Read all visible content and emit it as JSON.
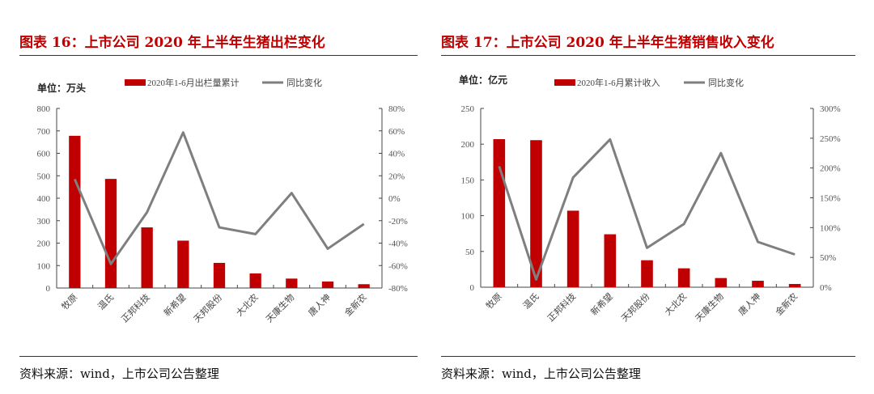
{
  "colors": {
    "bar": "#c00000",
    "line": "#7f7f7f",
    "title": "#c00000"
  },
  "panels": [
    {
      "title": "图表 16：上市公司 2020 年上半年生猪出栏变化",
      "source": "资料来源：wind，上市公司公告整理"
    },
    {
      "title": "图表 17：上市公司 2020 年上半年生猪销售收入变化",
      "source": "资料来源：wind，上市公司公告整理"
    }
  ],
  "chart_data": [
    {
      "type": "bar+line",
      "unit_label": "单位：万头",
      "categories": [
        "牧原",
        "温氏",
        "正邦科技",
        "新希望",
        "天邦股份",
        "大北农",
        "天康生物",
        "唐人神",
        "金新农"
      ],
      "series": [
        {
          "name": "2020年1-6月出栏量累计",
          "type": "bar",
          "axis": "left",
          "values": [
            678,
            486,
            270,
            211,
            112,
            65,
            42,
            29,
            17
          ]
        },
        {
          "name": "同比变化",
          "type": "line",
          "axis": "right",
          "values": [
            17,
            -58.6,
            -12.5,
            58.6,
            -26,
            -32,
            4.6,
            -45,
            -23
          ]
        }
      ],
      "left_axis": {
        "min": 0,
        "max": 800,
        "ticks": [
          "0",
          "100",
          "200",
          "300",
          "400",
          "500",
          "600",
          "700",
          "800"
        ]
      },
      "right_axis": {
        "min": -80,
        "max": 80,
        "ticks": [
          "-80%",
          "-60%",
          "-40%",
          "-20%",
          "0%",
          "20%",
          "40%",
          "60%",
          "80%"
        ]
      },
      "legend": "top"
    },
    {
      "type": "bar+line",
      "unit_label": "单位：亿元",
      "categories": [
        "牧原",
        "温氏",
        "正邦科技",
        "新希望",
        "天邦股份",
        "大北农",
        "天康生物",
        "唐人神",
        "金新农"
      ],
      "series": [
        {
          "name": "2020年1-6月累计收入",
          "type": "bar",
          "axis": "left",
          "values": [
            207,
            205.6,
            107,
            74,
            37.7,
            26.4,
            12.8,
            9,
            4.5
          ]
        },
        {
          "name": "同比变化",
          "type": "line",
          "axis": "right",
          "values": [
            203,
            13,
            184,
            248,
            66,
            106,
            225,
            76,
            55
          ]
        }
      ],
      "left_axis": {
        "min": 0,
        "max": 250,
        "ticks": [
          "0",
          "50",
          "100",
          "150",
          "200",
          "250"
        ]
      },
      "right_axis": {
        "min": 0,
        "max": 300,
        "ticks": [
          "0%",
          "50%",
          "100%",
          "150%",
          "200%",
          "250%",
          "300%"
        ]
      },
      "legend": "top"
    }
  ]
}
